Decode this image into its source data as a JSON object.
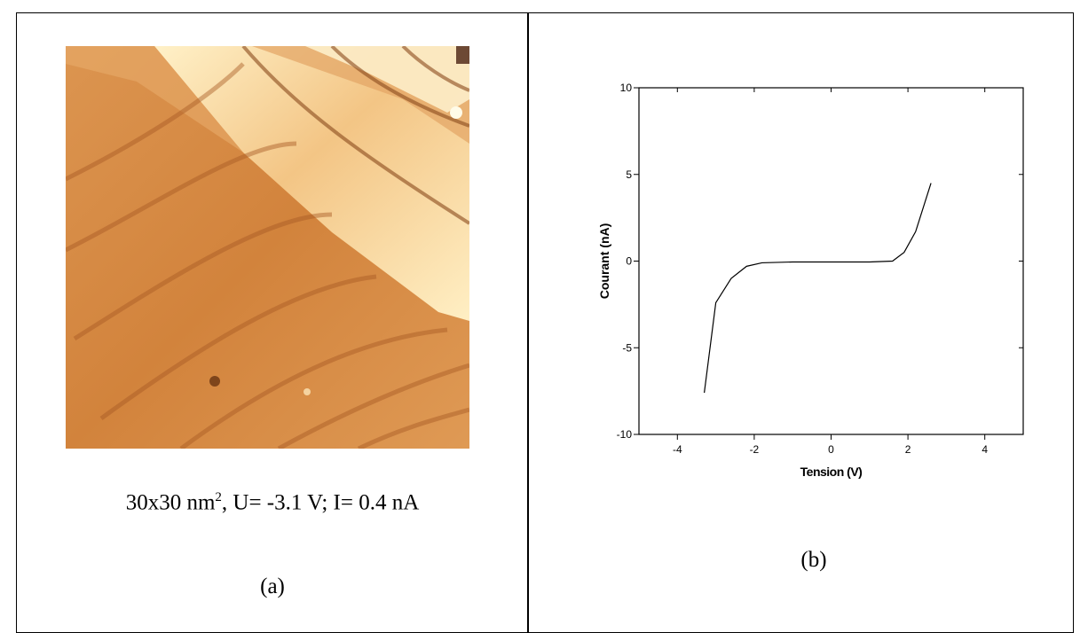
{
  "panel_a": {
    "caption": [
      "30x30 nm",
      "2",
      ", U= -3.1 V; I= 0.4 nA"
    ],
    "label": "(a)"
  },
  "panel_b": {
    "label": "(b)"
  },
  "chart_data": {
    "type": "line",
    "x_label": "Tension (V)",
    "y_label": "Courant (nA)",
    "x": [
      -3.3,
      -3.0,
      -2.6,
      -2.2,
      -1.8,
      -1.0,
      0,
      1.0,
      1.6,
      1.9,
      2.2,
      2.6
    ],
    "series": [
      {
        "color": "#000000",
        "values": [
          -7.6,
          -2.4,
          -1.0,
          -0.3,
          -0.1,
          -0.05,
          -0.05,
          -0.05,
          0.0,
          0.5,
          1.7,
          4.5
        ]
      }
    ],
    "xlim": [
      -5,
      5
    ],
    "ylim": [
      -10,
      10
    ],
    "xticks": [
      -4,
      -2,
      0,
      2,
      4
    ],
    "yticks": [
      -10,
      -5,
      0,
      5,
      10
    ]
  }
}
